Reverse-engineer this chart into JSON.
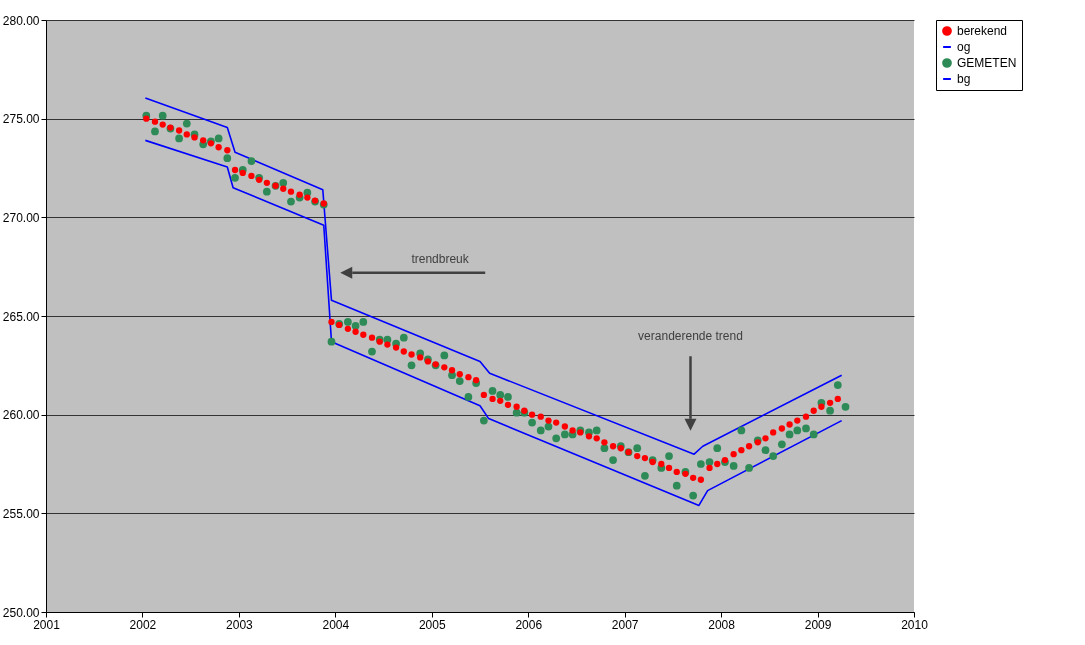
{
  "chart_data": {
    "type": "scatter",
    "xlim": [
      2001,
      2010
    ],
    "xticks": [
      2001,
      2002,
      2003,
      2004,
      2005,
      2006,
      2007,
      2008,
      2009,
      2010
    ],
    "ylim": [
      250,
      280
    ],
    "yticks": [
      {
        "value": 250,
        "label": "250.00"
      },
      {
        "value": 255,
        "label": "255.00"
      },
      {
        "value": 260,
        "label": "260.00"
      },
      {
        "value": 265,
        "label": "265.00"
      },
      {
        "value": 270,
        "label": "270.00"
      },
      {
        "value": 275,
        "label": "275.00"
      },
      {
        "value": 280,
        "label": "280.00"
      }
    ],
    "grid": "y",
    "legend": "right",
    "annotations": [
      "trendbreuk",
      "veranderende trend"
    ],
    "series": [
      {
        "name": "berekend",
        "type": "scatter",
        "marker": "circle",
        "color": "#ff0000",
        "x": [
          2002.04,
          2002.13,
          2002.21,
          2002.29,
          2002.38,
          2002.46,
          2002.54,
          2002.63,
          2002.71,
          2002.79,
          2002.88,
          2002.96,
          2003.04,
          2003.13,
          2003.21,
          2003.29,
          2003.38,
          2003.46,
          2003.54,
          2003.63,
          2003.71,
          2003.79,
          2003.88,
          2003.96,
          2004.04,
          2004.13,
          2004.21,
          2004.29,
          2004.38,
          2004.46,
          2004.54,
          2004.63,
          2004.71,
          2004.79,
          2004.88,
          2004.96,
          2005.04,
          2005.13,
          2005.21,
          2005.29,
          2005.38,
          2005.46,
          2005.54,
          2005.63,
          2005.71,
          2005.79,
          2005.88,
          2005.96,
          2006.04,
          2006.13,
          2006.21,
          2006.29,
          2006.38,
          2006.46,
          2006.54,
          2006.63,
          2006.71,
          2006.79,
          2006.88,
          2006.96,
          2007.04,
          2007.13,
          2007.21,
          2007.29,
          2007.38,
          2007.46,
          2007.54,
          2007.63,
          2007.71,
          2007.79,
          2007.88,
          2007.96,
          2008.04,
          2008.13,
          2008.21,
          2008.29,
          2008.38,
          2008.46,
          2008.54,
          2008.63,
          2008.71,
          2008.79,
          2008.88,
          2008.96,
          2009.04,
          2009.13,
          2009.21
        ],
        "values": [
          275.0,
          274.85,
          274.7,
          274.55,
          274.4,
          274.2,
          274.05,
          273.9,
          273.75,
          273.55,
          273.4,
          272.4,
          272.25,
          272.1,
          271.9,
          271.75,
          271.6,
          271.45,
          271.3,
          271.15,
          271.0,
          270.85,
          270.7,
          264.7,
          264.55,
          264.35,
          264.2,
          264.05,
          263.9,
          263.7,
          263.55,
          263.4,
          263.2,
          263.05,
          262.9,
          262.7,
          262.55,
          262.4,
          262.25,
          262.05,
          261.9,
          261.75,
          261.0,
          260.8,
          260.7,
          260.5,
          260.4,
          260.2,
          260.0,
          259.9,
          259.7,
          259.6,
          259.4,
          259.2,
          259.1,
          258.9,
          258.8,
          258.6,
          258.4,
          258.3,
          258.1,
          257.9,
          257.8,
          257.6,
          257.5,
          257.3,
          257.1,
          257.0,
          256.8,
          256.7,
          257.3,
          257.5,
          257.7,
          258.0,
          258.2,
          258.4,
          258.6,
          258.8,
          259.1,
          259.3,
          259.5,
          259.7,
          259.9,
          260.2,
          260.4,
          260.6,
          260.8
        ]
      },
      {
        "name": "og",
        "type": "line",
        "color": "#0000ff",
        "x": [
          2002.03,
          2002.88,
          2002.96,
          2003.87,
          2003.96,
          2005.5,
          2005.6,
          2007.72,
          2007.81,
          2009.25
        ],
        "values": [
          276.05,
          274.55,
          273.3,
          271.4,
          265.8,
          262.7,
          262.1,
          258.0,
          258.4,
          262.0
        ]
      },
      {
        "name": "GEMETEN",
        "type": "scatter",
        "marker": "circle",
        "color": "#2e8b57",
        "x": [
          2002.04,
          2002.13,
          2002.21,
          2002.29,
          2002.38,
          2002.46,
          2002.54,
          2002.63,
          2002.71,
          2002.79,
          2002.88,
          2002.96,
          2003.04,
          2003.13,
          2003.21,
          2003.29,
          2003.38,
          2003.46,
          2003.54,
          2003.63,
          2003.71,
          2003.79,
          2003.88,
          2003.96,
          2004.04,
          2004.13,
          2004.21,
          2004.29,
          2004.38,
          2004.46,
          2004.54,
          2004.63,
          2004.71,
          2004.79,
          2004.88,
          2004.96,
          2005.04,
          2005.13,
          2005.21,
          2005.29,
          2005.38,
          2005.46,
          2005.54,
          2005.63,
          2005.71,
          2005.79,
          2005.88,
          2005.96,
          2006.04,
          2006.13,
          2006.21,
          2006.29,
          2006.38,
          2006.46,
          2006.54,
          2006.63,
          2006.71,
          2006.79,
          2006.88,
          2006.96,
          2007.04,
          2007.13,
          2007.21,
          2007.29,
          2007.38,
          2007.46,
          2007.54,
          2007.63,
          2007.71,
          2007.79,
          2007.88,
          2007.96,
          2008.04,
          2008.13,
          2008.21,
          2008.29,
          2008.38,
          2008.46,
          2008.54,
          2008.63,
          2008.71,
          2008.79,
          2008.88,
          2008.96,
          2009.04,
          2009.13,
          2009.21,
          2009.29
        ],
        "values": [
          275.15,
          274.35,
          275.15,
          274.5,
          274.0,
          274.75,
          274.2,
          273.7,
          273.85,
          274.0,
          273.0,
          272.0,
          272.4,
          272.85,
          272.0,
          271.3,
          271.6,
          271.75,
          270.8,
          271.0,
          271.25,
          270.8,
          270.65,
          263.7,
          264.6,
          264.7,
          264.5,
          264.7,
          263.2,
          263.8,
          263.8,
          263.6,
          263.9,
          262.5,
          263.1,
          262.8,
          262.5,
          263.0,
          262.0,
          261.7,
          260.9,
          261.6,
          259.7,
          261.2,
          261.0,
          260.9,
          260.1,
          260.1,
          259.6,
          259.2,
          259.4,
          258.8,
          259.0,
          259.0,
          259.2,
          259.1,
          259.2,
          258.3,
          257.7,
          258.4,
          258.1,
          258.3,
          256.9,
          257.7,
          257.3,
          257.9,
          256.4,
          257.1,
          255.9,
          257.5,
          257.6,
          258.3,
          257.6,
          257.4,
          259.2,
          257.3,
          258.7,
          258.2,
          257.9,
          258.5,
          259.0,
          259.2,
          259.3,
          259.0,
          260.6,
          260.2,
          261.5,
          260.4
        ]
      },
      {
        "name": "bg",
        "type": "line",
        "color": "#0000ff",
        "x": [
          2002.03,
          2002.88,
          2002.94,
          2003.88,
          2003.96,
          2005.5,
          2005.59,
          2007.77,
          2007.86,
          2009.25
        ],
        "values": [
          273.9,
          272.55,
          271.5,
          269.6,
          263.7,
          260.45,
          259.8,
          255.4,
          256.15,
          259.7
        ]
      }
    ]
  }
}
